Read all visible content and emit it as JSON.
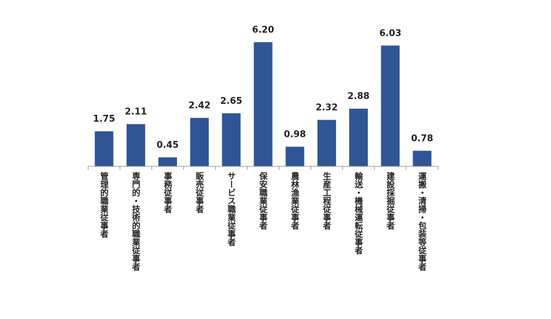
{
  "chart_data": {
    "type": "bar",
    "categories": [
      "管理的職業従事者",
      "専門的・技術的職業従事者",
      "事務従事者",
      "販売従事者",
      "サービス職業従事者",
      "保安職業従事者",
      "農林漁業従事者",
      "生産工程従事者",
      "輸送・機械運転従事者",
      "建設採掘従事者",
      "運搬・清掃・包装等従事者"
    ],
    "values": [
      1.75,
      2.11,
      0.45,
      2.42,
      2.65,
      6.2,
      0.98,
      2.32,
      2.88,
      6.03,
      0.78
    ],
    "value_labels": [
      "1.75",
      "2.11",
      "0.45",
      "2.42",
      "2.65",
      "6.20",
      "0.98",
      "2.32",
      "2.88",
      "6.03",
      "0.78"
    ],
    "color": "#2f5597",
    "ylim": [
      0,
      7
    ]
  }
}
